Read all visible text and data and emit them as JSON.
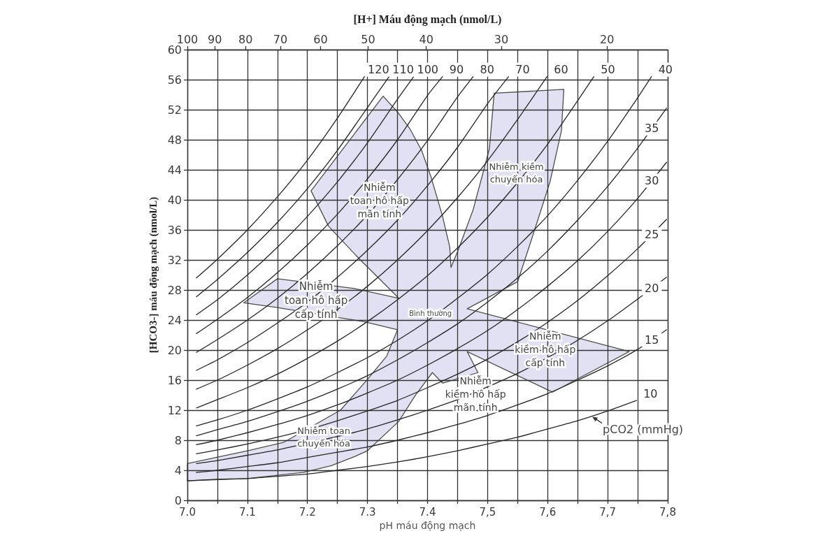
{
  "chart_data": {
    "type": "line",
    "xlabel": "pH máu động mạch",
    "ylabel": "[HCO3-] máu động mạch (nmol/L)",
    "x2label": "[H+] Máu động mạch (nmol/L)",
    "xlim": [
      7,
      7.8
    ],
    "xticks": [
      {
        "value": 7,
        "label": "7.0"
      },
      {
        "value": 7.05,
        "label": null
      },
      7.1,
      {
        "value": 7.15,
        "label": null
      },
      7.2,
      {
        "value": 7.25,
        "label": null
      },
      7.3,
      {
        "value": 7.35,
        "label": null
      },
      7.4,
      {
        "value": 7.45,
        "label": null
      },
      {
        "value": 7.5,
        "label": "7,5"
      },
      {
        "value": 7.55,
        "label": null
      },
      {
        "value": 7.6,
        "label": "7,6"
      },
      {
        "value": 7.65,
        "label": null
      },
      {
        "value": 7.7,
        "label": "7,7"
      },
      {
        "value": 7.75,
        "label": null
      },
      {
        "value": 7.8,
        "label": "7,8"
      }
    ],
    "ylim": [
      0,
      60
    ],
    "yticks": [
      0,
      4,
      8,
      12,
      16,
      20,
      24,
      28,
      32,
      36,
      40,
      44,
      48,
      52,
      56,
      60
    ],
    "x2lim": [
      100,
      15.85
    ],
    "x2ticks": [
      100,
      90,
      80,
      70,
      60,
      50,
      40,
      30,
      20
    ],
    "log": "x2",
    "grid": true,
    "series": [
      {
        "type": "area",
        "color": "#e1e1f3",
        "x": [
          7.0,
          7.0,
          7.1,
          7.16,
          7.255,
          7.3,
          7.332,
          7.35,
          7.293,
          7.146,
          7.094,
          7.15,
          7.278,
          7.352,
          7.321,
          7.288,
          7.235,
          7.206,
          7.266,
          7.326,
          7.35,
          7.371,
          7.39,
          7.406,
          7.425,
          7.437,
          7.439,
          7.451,
          7.476,
          7.503,
          7.511,
          7.627,
          7.623,
          7.604,
          7.588,
          7.569,
          7.55,
          7.466,
          7.736,
          7.608,
          7.466,
          7.484,
          7.425,
          7.408,
          7.379,
          7.352,
          7.3,
          7.278,
          7.239,
          7.193,
          7.1
        ],
        "values": [
          2.6,
          4.9,
          6.6,
          7.7,
          12.0,
          16.1,
          19.2,
          22.7,
          23.8,
          25.7,
          26.3,
          29.5,
          28.2,
          26.9,
          29.4,
          32.0,
          36.5,
          41.2,
          47.5,
          53.8,
          51.7,
          49.4,
          46.6,
          43.0,
          37.8,
          33.7,
          31.0,
          33.3,
          38.7,
          46.8,
          54.2,
          54.7,
          49.2,
          42.4,
          38.4,
          33.7,
          29.1,
          25.5,
          19.8,
          14.4,
          19.8,
          17.0,
          15.6,
          17.0,
          13.9,
          10.5,
          6.6,
          5.8,
          4.6,
          3.7,
          2.9
        ]
      },
      {
        "name": "120",
        "color": "#262626",
        "x": [
          7.015,
          7.05,
          7.1,
          7.15,
          7.2,
          7.25,
          7.295
        ],
        "values": [
          29.6,
          32.1,
          36.0,
          40.4,
          45.3,
          50.9,
          56.4
        ]
      },
      {
        "name": "110",
        "color": "#262626",
        "x": [
          7.015,
          7.05,
          7.1,
          7.15,
          7.2,
          7.25,
          7.3,
          7.336
        ],
        "values": [
          27.1,
          29.4,
          33.0,
          37.0,
          41.5,
          46.6,
          52.3,
          56.4
        ]
      },
      {
        "name": "100",
        "color": "#262626",
        "x": [
          7.015,
          7.05,
          7.1,
          7.15,
          7.2,
          7.25,
          7.3,
          7.35,
          7.377
        ],
        "values": [
          24.7,
          26.7,
          30.0,
          33.7,
          37.8,
          42.4,
          47.6,
          53.4,
          56.4
        ]
      },
      {
        "name": "90",
        "color": "#262626",
        "x": [
          7.015,
          7.05,
          7.1,
          7.15,
          7.2,
          7.25,
          7.3,
          7.35,
          7.4,
          7.425
        ],
        "values": [
          22.2,
          24.1,
          27.0,
          30.3,
          34.0,
          38.1,
          42.8,
          48.0,
          53.9,
          56.4
        ]
      },
      {
        "name": "80",
        "color": "#262626",
        "x": [
          7.015,
          7.05,
          7.1,
          7.15,
          7.2,
          7.25,
          7.3,
          7.35,
          7.4,
          7.45,
          7.476
        ],
        "values": [
          19.7,
          21.4,
          24.0,
          26.9,
          30.2,
          33.9,
          38.0,
          42.7,
          47.9,
          53.7,
          56.4
        ]
      },
      {
        "name": "70",
        "color": "#262626",
        "x": [
          7.015,
          7.05,
          7.1,
          7.15,
          7.2,
          7.25,
          7.3,
          7.35,
          7.4,
          7.45,
          7.5,
          7.535
        ],
        "values": [
          17.3,
          18.7,
          21.0,
          23.6,
          26.4,
          29.7,
          33.3,
          37.3,
          41.9,
          47.0,
          52.8,
          56.4
        ]
      },
      {
        "name": "60",
        "color": "#262626",
        "x": [
          7.015,
          7.05,
          7.1,
          7.15,
          7.2,
          7.25,
          7.3,
          7.35,
          7.4,
          7.45,
          7.5,
          7.55,
          7.599
        ],
        "values": [
          14.8,
          16.0,
          18.0,
          20.2,
          22.7,
          25.4,
          28.5,
          32.0,
          35.9,
          40.3,
          45.2,
          50.7,
          56.4
        ]
      },
      {
        "name": "50",
        "color": "#262626",
        "x": [
          7.015,
          7.05,
          7.1,
          7.15,
          7.2,
          7.25,
          7.3,
          7.35,
          7.4,
          7.45,
          7.5,
          7.55,
          7.6,
          7.65,
          7.677
        ],
        "values": [
          12.3,
          13.4,
          15.0,
          16.8,
          18.9,
          21.2,
          23.8,
          26.7,
          29.9,
          33.6,
          37.7,
          42.3,
          47.4,
          53.2,
          56.4
        ]
      },
      {
        "name": "40",
        "color": "#262626",
        "x": [
          7.015,
          7.05,
          7.1,
          7.15,
          7.2,
          7.25,
          7.3,
          7.35,
          7.4,
          7.45,
          7.5,
          7.55,
          7.6,
          7.65,
          7.7,
          7.75,
          7.773
        ],
        "values": [
          9.9,
          10.7,
          12.0,
          13.5,
          15.1,
          17.0,
          19.0,
          21.3,
          23.9,
          26.9,
          30.1,
          33.8,
          37.9,
          42.6,
          47.8,
          53.6,
          56.4
        ]
      },
      {
        "name": "35",
        "color": "#262626",
        "x": [
          7.015,
          7.05,
          7.1,
          7.15,
          7.2,
          7.25,
          7.3,
          7.35,
          7.4,
          7.45,
          7.5,
          7.55,
          7.6,
          7.65,
          7.7,
          7.75,
          7.798
        ],
        "values": [
          8.6,
          9.4,
          10.5,
          11.8,
          13.2,
          14.8,
          16.6,
          18.7,
          21.0,
          23.5,
          26.4,
          29.6,
          33.2,
          37.3,
          41.8,
          46.9,
          52.2
        ]
      },
      {
        "name": "30",
        "color": "#262626",
        "x": [
          7.015,
          7.05,
          7.1,
          7.15,
          7.2,
          7.25,
          7.3,
          7.35,
          7.4,
          7.45,
          7.5,
          7.55,
          7.6,
          7.65,
          7.7,
          7.75,
          7.798
        ],
        "values": [
          7.4,
          8.0,
          9.0,
          10.1,
          11.3,
          12.7,
          14.3,
          16.0,
          18.0,
          20.2,
          22.6,
          25.4,
          28.5,
          31.9,
          35.8,
          40.2,
          45.0
        ]
      },
      {
        "name": "25",
        "color": "#262626",
        "x": [
          7.015,
          7.05,
          7.1,
          7.15,
          7.2,
          7.25,
          7.3,
          7.35,
          7.4,
          7.45,
          7.5,
          7.55,
          7.6,
          7.65,
          7.7,
          7.75,
          7.798
        ],
        "values": [
          6.2,
          6.7,
          7.5,
          8.4,
          9.4,
          10.6,
          11.9,
          13.3,
          15.0,
          16.8,
          18.8,
          21.1,
          23.7,
          26.6,
          29.9,
          33.5,
          37.4
        ]
      },
      {
        "name": "20",
        "color": "#262626",
        "x": [
          7.015,
          7.05,
          7.1,
          7.15,
          7.2,
          7.25,
          7.3,
          7.35,
          7.4,
          7.45,
          7.5,
          7.55,
          7.6,
          7.65,
          7.7,
          7.75,
          7.798
        ],
        "values": [
          4.9,
          5.3,
          6.0,
          6.7,
          7.6,
          8.5,
          9.5,
          10.7,
          12.0,
          13.4,
          15.1,
          16.9,
          19.0,
          21.3,
          23.9,
          26.8,
          29.7
        ]
      },
      {
        "name": "15",
        "color": "#262626",
        "x": [
          7.015,
          7.05,
          7.1,
          7.15,
          7.2,
          7.25,
          7.3,
          7.35,
          7.4,
          7.45,
          7.5,
          7.55,
          7.6,
          7.65,
          7.7,
          7.75,
          7.798
        ],
        "values": [
          3.7,
          4.0,
          4.5,
          5.0,
          5.7,
          6.4,
          7.1,
          8.0,
          9.0,
          10.1,
          11.3,
          12.7,
          14.2,
          16.0,
          17.9,
          20.1,
          22.7
        ]
      },
      {
        "name": "10",
        "color": "#262626",
        "x": [
          7.0,
          7.05,
          7.1,
          7.15,
          7.2,
          7.25,
          7.3,
          7.35,
          7.4,
          7.45,
          7.5,
          7.55,
          7.6,
          7.65,
          7.7,
          7.748
        ],
        "values": [
          2.6,
          2.8,
          2.9,
          3.2,
          3.5,
          4.0,
          4.5,
          5.1,
          5.8,
          6.6,
          7.5,
          8.4,
          9.5,
          10.6,
          11.9,
          13.3
        ]
      }
    ],
    "annotations": [
      "Nhiễm\ntoan hô hấp\nmãn tính",
      "Nhiễm\ntoan hô hấp\ncấp tính",
      "Bình thường",
      "Nhiễm kiềm\nchuyển hóa",
      "Nhiễm\nkiềm hô hấp\ncấp tính",
      "Nhiễm\nkiềm hô hấp\nmãn tính",
      "Nhiễm toan\nchuyển hóa",
      {
        "text": "pCO2 (mmHg)",
        "x": 7.672,
        "y": 11.2
      }
    ]
  }
}
